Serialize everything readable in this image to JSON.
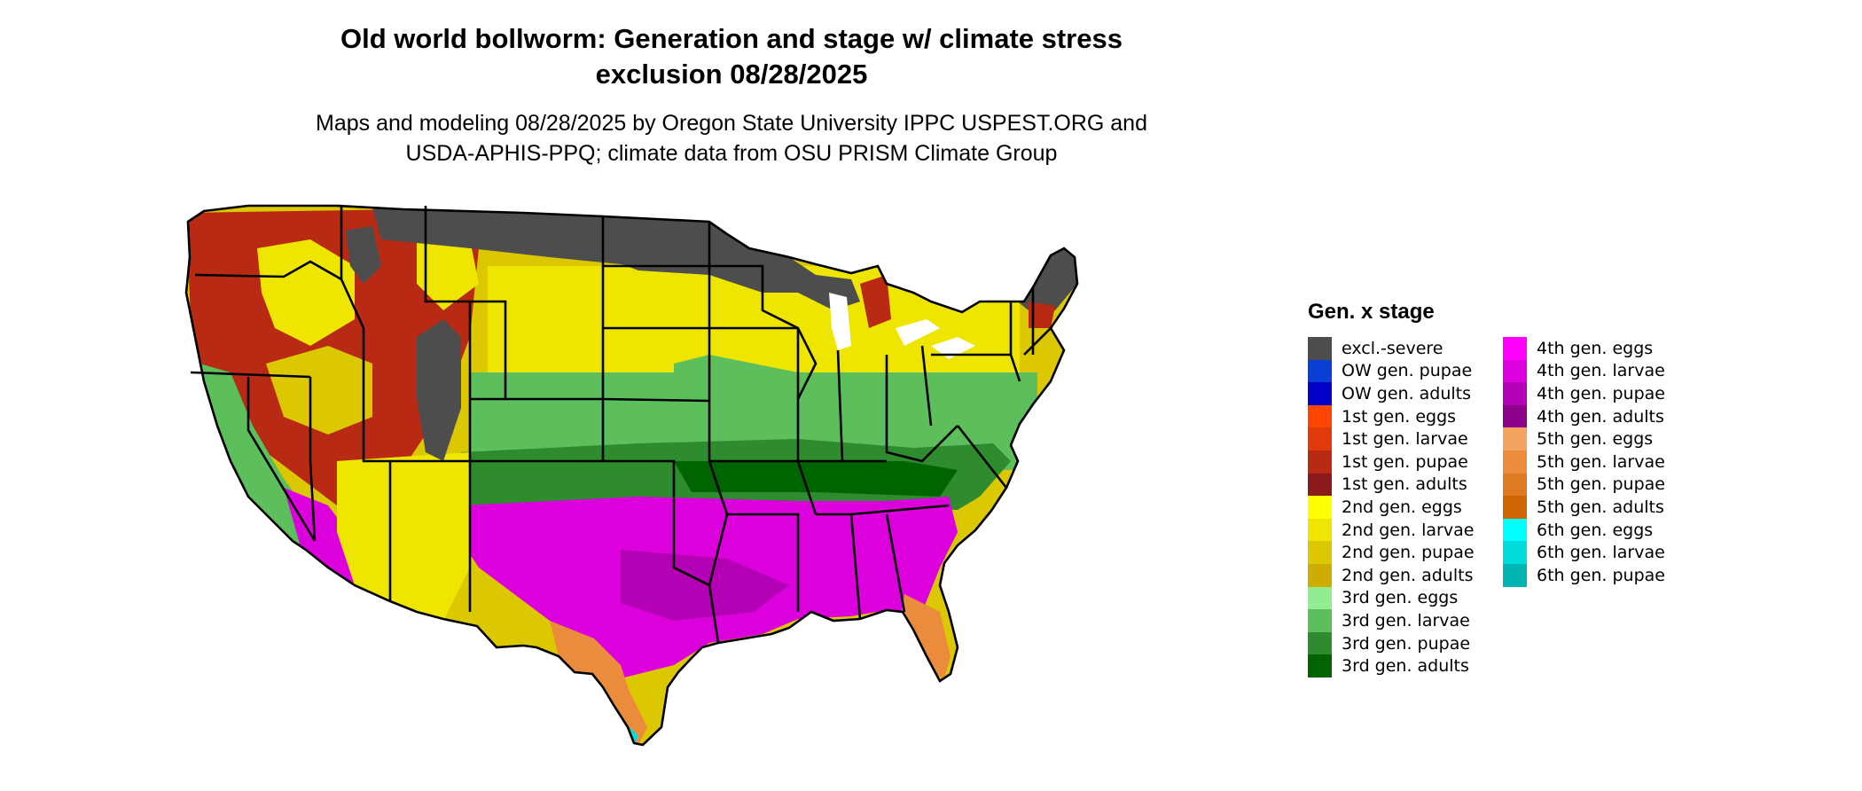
{
  "title": {
    "line1": "Old world bollworm: Generation and stage w/ climate stress",
    "line2": "exclusion 08/28/2025"
  },
  "subtitle": {
    "line1": "Maps and modeling 08/28/2025 by Oregon State University IPPC USPEST.ORG and",
    "line2": "USDA-APHIS-PPQ; climate data from OSU PRISM Climate Group"
  },
  "legend": {
    "title": "Gen. x stage",
    "columns": [
      [
        {
          "label": "excl.-severe",
          "color": "#4d4d4d"
        },
        {
          "label": "OW gen. pupae",
          "color": "#0a3fd6"
        },
        {
          "label": "OW gen. adults",
          "color": "#0000c8"
        },
        {
          "label": "1st gen. eggs",
          "color": "#ff4500"
        },
        {
          "label": "1st gen. larvae",
          "color": "#e03a0a"
        },
        {
          "label": "1st gen. pupae",
          "color": "#b82a14"
        },
        {
          "label": "1st gen. adults",
          "color": "#8b1a1a"
        },
        {
          "label": "2nd gen. eggs",
          "color": "#ffff00"
        },
        {
          "label": "2nd gen. larvae",
          "color": "#eee600"
        },
        {
          "label": "2nd gen. pupae",
          "color": "#dcc800"
        },
        {
          "label": "2nd gen. adults",
          "color": "#cdad00"
        },
        {
          "label": "3rd gen. eggs",
          "color": "#90ee90"
        },
        {
          "label": "3rd gen. larvae",
          "color": "#5cbf5c"
        },
        {
          "label": "3rd gen. pupae",
          "color": "#2e8b2e"
        },
        {
          "label": "3rd gen. adults",
          "color": "#006400"
        }
      ],
      [
        {
          "label": "4th gen. eggs",
          "color": "#ff00ff"
        },
        {
          "label": "4th gen. larvae",
          "color": "#dc00dc"
        },
        {
          "label": "4th gen. pupae",
          "color": "#b400b4"
        },
        {
          "label": "4th gen. adults",
          "color": "#8b008b"
        },
        {
          "label": "5th gen. eggs",
          "color": "#f4a460"
        },
        {
          "label": "5th gen. larvae",
          "color": "#eb8c3c"
        },
        {
          "label": "5th gen. pupae",
          "color": "#de7a22"
        },
        {
          "label": "5th gen. adults",
          "color": "#cd6600"
        },
        {
          "label": "6th gen. eggs",
          "color": "#00ffff"
        },
        {
          "label": "6th gen. larvae",
          "color": "#00dcdc"
        },
        {
          "label": "6th gen. pupae",
          "color": "#00b4b4"
        }
      ]
    ]
  }
}
